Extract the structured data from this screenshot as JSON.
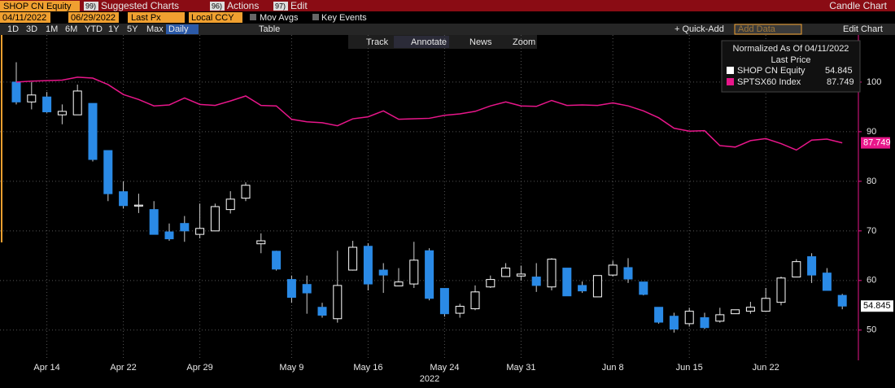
{
  "toolbar": {
    "ticker": "SHOP CN Equity",
    "menus": [
      {
        "num": "99)",
        "label": "Suggested Charts"
      },
      {
        "num": "96)",
        "label": "Actions"
      },
      {
        "num": "97)",
        "label": "Edit"
      }
    ],
    "chart_kind": "Candle Chart",
    "start_date": "04/11/2022",
    "end_date": "06/29/2022",
    "price": "Last Px",
    "currency": "Local CCY",
    "options": [
      "Mov Avgs",
      "Key Events"
    ],
    "periods": [
      "1D",
      "3D",
      "1M",
      "6M",
      "YTD",
      "1Y",
      "5Y",
      "Max"
    ],
    "frequency": "Daily",
    "table": "Table",
    "quick_add": "+ Quick-Add",
    "add_data": "Add Data",
    "edit_chart": "Edit Chart",
    "tools": [
      "Track",
      "Annotate",
      "News",
      "Zoom"
    ]
  },
  "chart_data": {
    "type": "candlestick",
    "legend_title": "Normalized As Of 04/11/2022",
    "legend_subtitle": "Last Price",
    "year_label": "2022",
    "categories": [
      null,
      null,
      "Apr 14",
      null,
      null,
      null,
      null,
      "Apr 22",
      null,
      null,
      null,
      null,
      "Apr 29",
      null,
      null,
      null,
      null,
      null,
      "May 9",
      null,
      null,
      null,
      null,
      "May 16",
      null,
      null,
      null,
      null,
      "May 24",
      null,
      null,
      null,
      null,
      "May 31",
      null,
      null,
      null,
      null,
      null,
      "Jun 8",
      null,
      null,
      null,
      null,
      "Jun 15",
      null,
      null,
      null,
      null,
      "Jun 22",
      null,
      null,
      null,
      null,
      null
    ],
    "series": [
      {
        "name": "SHOP CN Equity",
        "up_color": "#ffffff",
        "down_color": "#2a8ae6",
        "open": [
          100,
          96,
          97,
          93.4,
          93.4,
          95.7,
          86.2,
          77.9,
          75,
          74.3,
          69.8,
          71.5,
          69.3,
          70,
          74.3,
          76.6,
          67.4,
          65.9,
          60.2,
          59.2,
          54.6,
          52.3,
          62.1,
          66.9,
          62.1,
          58.9,
          59.3,
          66,
          58.4,
          53.4,
          54.3,
          58.7,
          60.8,
          60.9,
          60.7,
          58.7,
          62.5,
          59,
          56.7,
          61.1,
          62.6,
          59.7,
          54.6,
          52.8,
          51.3,
          52.5,
          51.8,
          53.3,
          53.8,
          53.8,
          55.6,
          60.7,
          64.8,
          61.5,
          57
        ],
        "high": [
          104,
          100,
          98,
          95.5,
          99.5,
          95.7,
          86.2,
          80,
          77.5,
          76,
          71.5,
          73,
          75.5,
          75.5,
          78,
          79.8,
          69.5,
          66,
          61,
          61,
          55.5,
          66,
          68,
          67.5,
          63.5,
          62.5,
          67.8,
          66.5,
          58.4,
          55.3,
          59,
          61,
          63.5,
          63,
          63.5,
          64.5,
          62.5,
          59.8,
          61,
          64,
          64.5,
          59.7,
          54.6,
          53.5,
          54.5,
          53.5,
          54.5,
          54.1,
          55.7,
          58.5,
          60.8,
          64.3,
          65.5,
          62.5,
          57.3
        ],
        "low": [
          95.5,
          94.5,
          93.8,
          91.5,
          93.4,
          84,
          76,
          74.5,
          73.6,
          69.3,
          68,
          67.8,
          68.5,
          70,
          73.5,
          76,
          65.5,
          62,
          55.5,
          53.3,
          52.5,
          51.5,
          62,
          58,
          57.5,
          58.9,
          58.5,
          56,
          52.7,
          52.5,
          54,
          58.5,
          60.8,
          60,
          57.7,
          58,
          56.9,
          57.5,
          56.7,
          60.8,
          59.5,
          57,
          51.3,
          49.5,
          50.7,
          50.2,
          51.5,
          53.3,
          53.3,
          53.8,
          55,
          60.7,
          59.5,
          58,
          54.2
        ],
        "close": [
          96,
          97.4,
          94,
          94.1,
          98.2,
          84.4,
          77.5,
          75.1,
          75.2,
          69.3,
          68.4,
          70,
          70.5,
          74.9,
          76.4,
          79.2,
          68,
          62.3,
          56.6,
          57.5,
          53,
          59,
          66.7,
          59.3,
          61.1,
          59.7,
          64.1,
          56.4,
          53.3,
          54.8,
          57.7,
          60.2,
          62.5,
          61.3,
          59,
          64.3,
          56.9,
          57.9,
          61,
          63.1,
          60.3,
          57.2,
          51.6,
          50.2,
          53.8,
          50.5,
          53.1,
          54.1,
          54.6,
          56.4,
          60.5,
          63.8,
          61.1,
          58,
          54.845
        ]
      },
      {
        "name": "SPTSX60 Index",
        "color": "#e8168a",
        "values": [
          100,
          100.2,
          100.3,
          100.4,
          101,
          100.8,
          99.5,
          97.5,
          96.5,
          95.2,
          95.4,
          96.8,
          95.5,
          95.3,
          96.2,
          97.2,
          95.3,
          95.2,
          92.5,
          92,
          91.8,
          91.2,
          92.6,
          93,
          94.2,
          92.5,
          92.6,
          92.7,
          93.3,
          93.6,
          94.1,
          95.2,
          96,
          95.2,
          95.1,
          96.3,
          95.3,
          95.4,
          95.3,
          95.8,
          95.2,
          94.2,
          92.8,
          90.7,
          90.1,
          90.2,
          87.2,
          86.9,
          88.2,
          88.6,
          87.6,
          86.3,
          88.3,
          88.5,
          87.749
        ]
      }
    ],
    "ylim": [
      43.9,
      109.5
    ],
    "yticks": [
      50,
      60,
      70,
      80,
      90,
      100
    ],
    "grid": true
  }
}
